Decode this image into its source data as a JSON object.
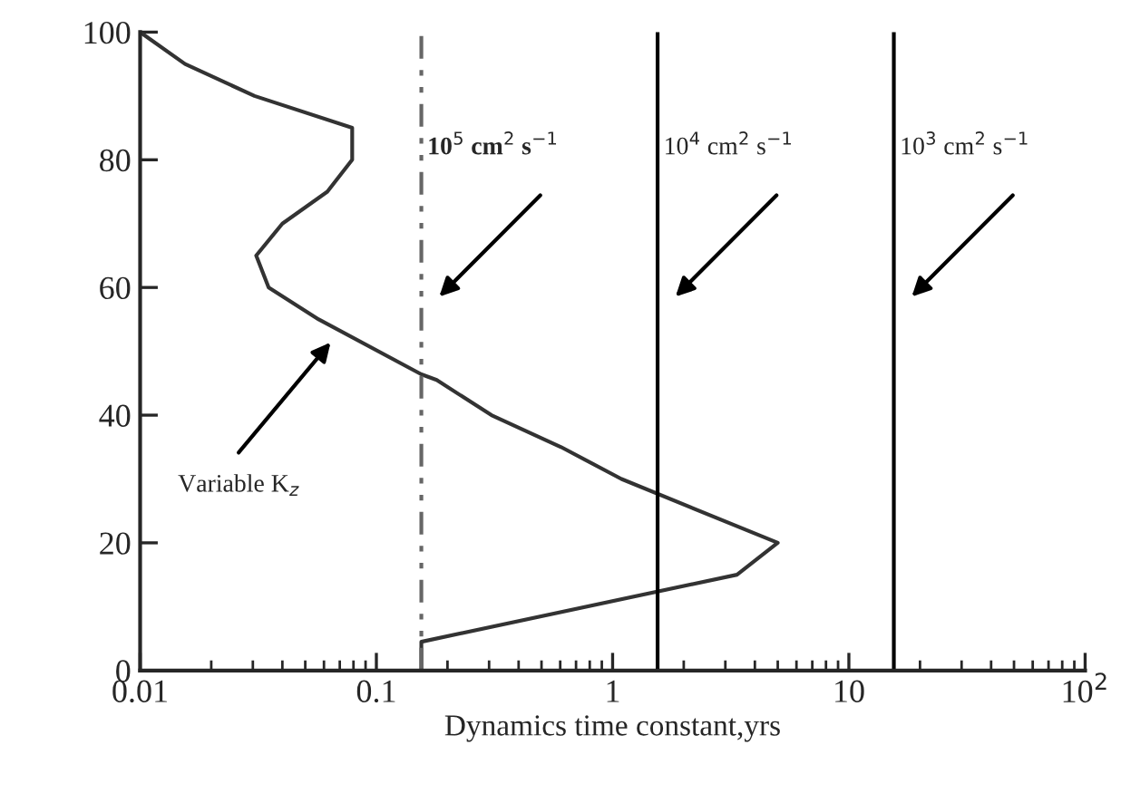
{
  "chart_data": {
    "type": "line",
    "xlabel": "Dynamics time constant,yrs",
    "log": "x",
    "xlim": [
      0.01,
      100
    ],
    "ylim": [
      0,
      100
    ],
    "xticks": [
      0.01,
      0.1,
      1,
      10,
      {
        "value": 100,
        "label": "10$^{2}$"
      }
    ],
    "yticks": [
      0,
      20,
      40,
      60,
      80,
      100
    ],
    "grid": false,
    "legend": false,
    "marker": "none",
    "line_style": "solid",
    "series": [
      {
        "color": "#333333",
        "x": [
          0.01,
          0.0155,
          0.0305,
          0.079,
          0.079,
          0.062,
          0.04,
          0.031,
          0.035,
          0.057,
          0.155,
          0.18,
          0.307,
          0.605,
          1.09,
          5.0,
          3.36,
          0.155,
          0.155
        ],
        "values": [
          100,
          95,
          90,
          85,
          80,
          75,
          70,
          65,
          60,
          55,
          46.4,
          45.5,
          40,
          35,
          30,
          20,
          15,
          4.5,
          0
        ]
      }
    ],
    "ref_lines": [
      {
        "axis": "x",
        "value": 0.155,
        "label": "10$^{5}$ cm$^{2}$ s$^{−1}$",
        "color": "#666666",
        "line_style": "dashdotdot"
      },
      {
        "axis": "x",
        "value": 1.55,
        "label": "10$^{4}$ cm$^{2}$ s$^{−1}$",
        "color": "#000000",
        "line_style": "solid"
      },
      {
        "axis": "x",
        "value": 15.5,
        "label": "10$^{3}$ cm$^{2}$ s$^{−1}$",
        "color": "#000000",
        "line_style": "solid"
      }
    ],
    "annotations": [
      "Variable K$_{z}$"
    ]
  }
}
